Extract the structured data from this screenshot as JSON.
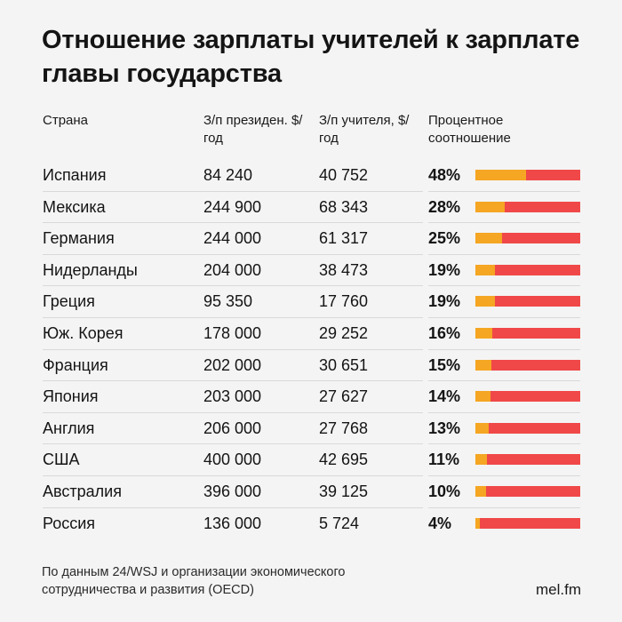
{
  "title": "Отношение зарплаты учителей к зарплате главы государства",
  "header": {
    "country": "Страна",
    "president_salary": "З/п президен. $/год",
    "teacher_salary": "З/п учителя, $/год",
    "ratio": "Процентное соотношение"
  },
  "colors": {
    "teacher_share": "#f5a623",
    "remainder": "#f04848",
    "background": "#f4f4f4"
  },
  "chart_data": {
    "type": "table",
    "columns": [
      "Страна",
      "З/п президен. $/год",
      "З/п учителя, $/год",
      "Процентное соотношение"
    ],
    "rows": [
      {
        "country": "Испания",
        "president": "84 240",
        "teacher": "40 752",
        "pct_label": "48%",
        "pct": 48
      },
      {
        "country": "Мексика",
        "president": "244 900",
        "teacher": "68 343",
        "pct_label": "28%",
        "pct": 28
      },
      {
        "country": "Германия",
        "president": "244 000",
        "teacher": "61 317",
        "pct_label": "25%",
        "pct": 25
      },
      {
        "country": "Нидерланды",
        "president": "204 000",
        "teacher": "38 473",
        "pct_label": "19%",
        "pct": 19
      },
      {
        "country": "Греция",
        "president": "95 350",
        "teacher": "17 760",
        "pct_label": "19%",
        "pct": 19
      },
      {
        "country": "Юж. Корея",
        "president": "178 000",
        "teacher": "29 252",
        "pct_label": "16%",
        "pct": 16
      },
      {
        "country": "Франция",
        "president": "202 000",
        "teacher": "30 651",
        "pct_label": "15%",
        "pct": 15
      },
      {
        "country": "Япония",
        "president": "203 000",
        "teacher": "27 627",
        "pct_label": "14%",
        "pct": 14
      },
      {
        "country": "Англия",
        "president": "206 000",
        "teacher": "27 768",
        "pct_label": "13%",
        "pct": 13
      },
      {
        "country": "США",
        "president": "400 000",
        "teacher": "42 695",
        "pct_label": "11%",
        "pct": 11
      },
      {
        "country": "Австралия",
        "president": "396 000",
        "teacher": "39 125",
        "pct_label": "10%",
        "pct": 10
      },
      {
        "country": "Россия",
        "president": "136 000",
        "teacher": "5 724",
        "pct_label": "4%",
        "pct": 4
      }
    ]
  },
  "footer": {
    "source": "По данным 24/WSJ и организации экономического сотрудничества и развития (OECD)",
    "brand": "mel.fm"
  }
}
